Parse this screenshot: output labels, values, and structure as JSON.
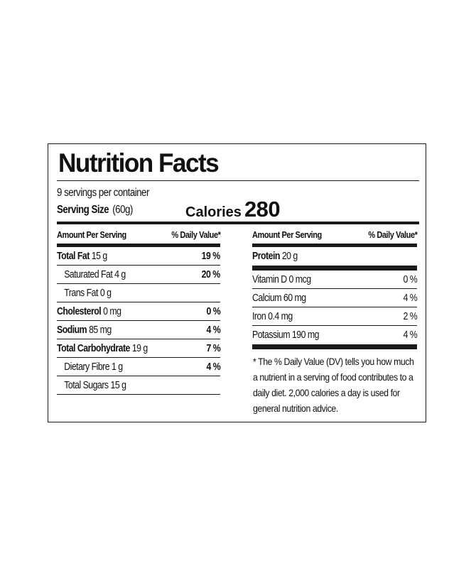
{
  "title": "Nutrition Facts",
  "servings_per_container": "9 servings per container",
  "serving_size": {
    "label": "Serving Size",
    "amount": "(60g)"
  },
  "calories": {
    "label": "Calories",
    "value": "280"
  },
  "left": {
    "header": {
      "amount": "Amount Per Serving",
      "dv": "% Daily Value*"
    },
    "rows": [
      {
        "name": "Total Fat",
        "amount": "15 g",
        "dv": "19 %"
      },
      {
        "name": "Saturated Fat",
        "amount": "4 g",
        "dv": "20 %"
      },
      {
        "name": "Trans Fat",
        "amount": "0 g",
        "dv": ""
      },
      {
        "name": "Cholesterol",
        "amount": "0 mg",
        "dv": "0 %"
      },
      {
        "name": "Sodium",
        "amount": "85 mg",
        "dv": "4 %"
      },
      {
        "name": "Total Carbohydrate",
        "amount": "19 g",
        "dv": "7 %"
      },
      {
        "name": "Dietary Fibre",
        "amount": "1 g",
        "dv": "4 %"
      },
      {
        "name": "Total Sugars",
        "amount": "15 g",
        "dv": ""
      }
    ]
  },
  "right": {
    "header": {
      "amount": "Amount Per Serving",
      "dv": "% Daily Value*"
    },
    "protein": {
      "name": "Protein",
      "amount": "20 g"
    },
    "rows": [
      {
        "name": "Vitamin D",
        "amount": "0 mcg",
        "dv": "0 %"
      },
      {
        "name": "Calcium",
        "amount": "60 mg",
        "dv": "4 %"
      },
      {
        "name": "Iron",
        "amount": "0.4 mg",
        "dv": "2 %"
      },
      {
        "name": "Potassium",
        "amount": "190 mg",
        "dv": "4 %"
      }
    ],
    "footnote": "* The % Daily Value (DV) tells you how much a nutrient in a serving of food contributes to a daily diet. 2,000 calories a day is used for general nutrition advice."
  }
}
